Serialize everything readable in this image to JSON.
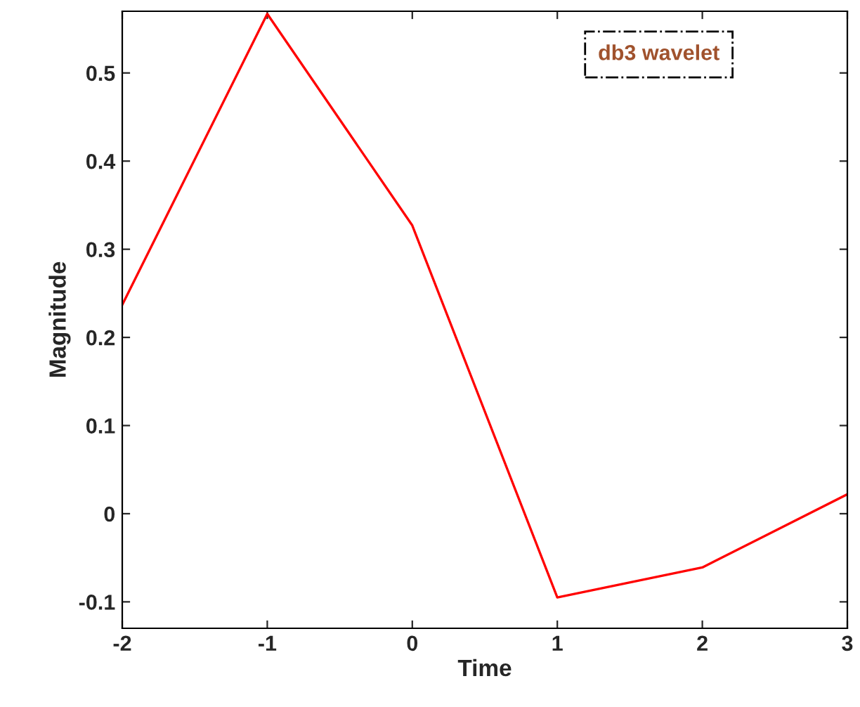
{
  "chart_data": {
    "type": "line",
    "xlabel": "Time",
    "ylabel": "Magnitude",
    "x": [
      -2,
      -1,
      0,
      1,
      2,
      3
    ],
    "series": [
      {
        "color": "#ff0000",
        "values": [
          0.237,
          0.567,
          0.327,
          -0.095,
          -0.061,
          0.022
        ]
      }
    ],
    "xlim": [
      -2,
      3
    ],
    "xticks": [
      -2,
      -1,
      0,
      1,
      2,
      3
    ],
    "ylim": [
      -0.13,
      0.57
    ],
    "yticks": [
      -0.1,
      0,
      0.1,
      0.2,
      0.3,
      0.4,
      0.5
    ],
    "annotations": [
      "db3 wavelet"
    ],
    "grid": false,
    "legend": false
  }
}
